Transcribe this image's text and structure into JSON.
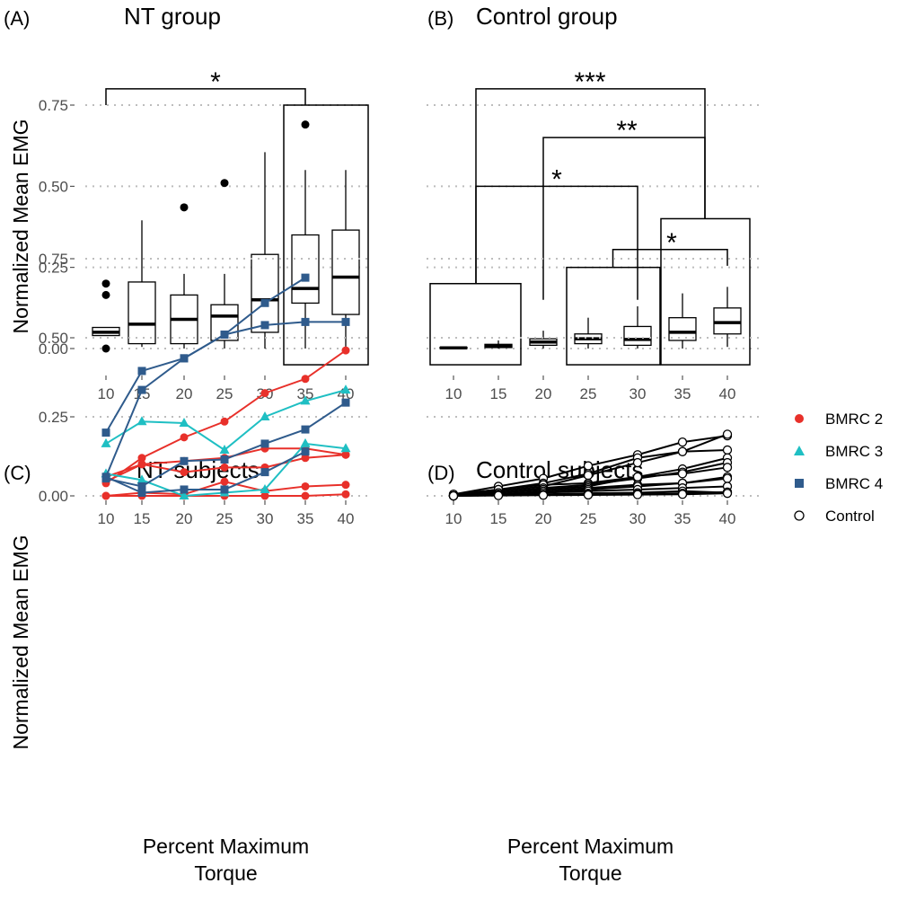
{
  "colors": {
    "BMRC 2": "#e8302a",
    "BMRC 3": "#1fbfc3",
    "BMRC 4": "#2f5b8c",
    "Control": "#000000",
    "grid": "#bdbdbd"
  },
  "legend": {
    "items": [
      {
        "label": "BMRC 2",
        "shape": "circle",
        "color": "#e8302a"
      },
      {
        "label": "BMRC 3",
        "shape": "triangle",
        "color": "#1fbfc3"
      },
      {
        "label": "BMRC 4",
        "shape": "square",
        "color": "#2f5b8c"
      },
      {
        "label": "Control",
        "shape": "open-circle",
        "color": "#000000"
      }
    ]
  },
  "chart_data": [
    {
      "panel": "A",
      "tag": "(A)",
      "title": "NT group",
      "type": "box",
      "ylabel": "Normalized Mean EMG",
      "xlabel": "",
      "ylim": [
        -0.05,
        0.8
      ],
      "yticks": [
        0.0,
        0.25,
        0.5,
        0.75
      ],
      "ytick_labels": [
        "0.00",
        "0.25",
        "0.50",
        "0.75"
      ],
      "categories": [
        "10",
        "15",
        "20",
        "25",
        "30",
        "35",
        "40"
      ],
      "grid": "horizontal dotted",
      "boxes": [
        {
          "x": "10",
          "q1": 0.04,
          "median": 0.05,
          "q3": 0.065,
          "low": 0.04,
          "high": 0.065,
          "outliers": [
            0.2,
            0.165,
            0.0
          ]
        },
        {
          "x": "15",
          "q1": 0.015,
          "median": 0.075,
          "q3": 0.205,
          "low": 0.005,
          "high": 0.395,
          "outliers": []
        },
        {
          "x": "20",
          "q1": 0.015,
          "median": 0.09,
          "q3": 0.165,
          "low": 0.0,
          "high": 0.23,
          "outliers": [
            0.435
          ]
        },
        {
          "x": "25",
          "q1": 0.025,
          "median": 0.1,
          "q3": 0.135,
          "low": 0.0,
          "high": 0.23,
          "outliers": [
            0.51
          ]
        },
        {
          "x": "30",
          "q1": 0.05,
          "median": 0.15,
          "q3": 0.29,
          "low": 0.0,
          "high": 0.605,
          "outliers": []
        },
        {
          "x": "35",
          "q1": 0.14,
          "median": 0.185,
          "q3": 0.35,
          "low": 0.0,
          "high": 0.55,
          "outliers": [
            0.69
          ]
        },
        {
          "x": "40",
          "q1": 0.105,
          "median": 0.22,
          "q3": 0.365,
          "low": 0.005,
          "high": 0.55,
          "outliers": []
        }
      ],
      "groups": [
        {
          "from": "35",
          "to": "40",
          "y0": -0.05,
          "y1": 0.75
        }
      ],
      "brackets": [
        {
          "from": "10",
          "to": "35",
          "y": 0.8,
          "left_end": 0.75,
          "right_end": 0.75,
          "label": "*"
        }
      ]
    },
    {
      "panel": "B",
      "tag": "(B)",
      "title": "Control group",
      "type": "box",
      "ylabel": "",
      "xlabel": "",
      "ylim": [
        -0.05,
        0.8
      ],
      "yticks": [
        0.0,
        0.25,
        0.5,
        0.75
      ],
      "ytick_labels": [
        "",
        "",
        "",
        ""
      ],
      "categories": [
        "10",
        "15",
        "20",
        "25",
        "30",
        "35",
        "40"
      ],
      "grid": "horizontal dotted",
      "boxes": [
        {
          "x": "10",
          "q1": 0.0,
          "median": 0.002,
          "q3": 0.004,
          "low": 0.0,
          "high": 0.005,
          "outliers": []
        },
        {
          "x": "15",
          "q1": 0.003,
          "median": 0.008,
          "q3": 0.013,
          "low": 0.0,
          "high": 0.025,
          "outliers": []
        },
        {
          "x": "20",
          "q1": 0.01,
          "median": 0.02,
          "q3": 0.03,
          "low": 0.0,
          "high": 0.055,
          "outliers": []
        },
        {
          "x": "25",
          "q1": 0.015,
          "median": 0.03,
          "q3": 0.045,
          "low": 0.0,
          "high": 0.095,
          "outliers": []
        },
        {
          "x": "30",
          "q1": 0.01,
          "median": 0.028,
          "q3": 0.068,
          "low": 0.0,
          "high": 0.13,
          "outliers": []
        },
        {
          "x": "35",
          "q1": 0.025,
          "median": 0.05,
          "q3": 0.095,
          "low": 0.0,
          "high": 0.17,
          "outliers": []
        },
        {
          "x": "40",
          "q1": 0.045,
          "median": 0.08,
          "q3": 0.125,
          "low": 0.005,
          "high": 0.19,
          "outliers": []
        }
      ],
      "groups": [
        {
          "from": "10",
          "to": "15",
          "y0": -0.05,
          "y1": 0.2
        },
        {
          "from": "25",
          "to": "30",
          "y0": -0.05,
          "y1": 0.25
        },
        {
          "from": "35",
          "to": "40",
          "y0": -0.05,
          "y1": 0.4
        }
      ],
      "brackets": [
        {
          "from": "12.5",
          "to": "37.5",
          "y": 0.8,
          "left_end": 0.2,
          "right_end": 0.4,
          "label": "***"
        },
        {
          "from": "20",
          "to": "37.5",
          "y": 0.65,
          "left_end": 0.15,
          "right_end": 0.4,
          "label": "**"
        },
        {
          "from": "12.5",
          "to": "30",
          "y": 0.5,
          "left_end": 0.2,
          "right_end": 0.15,
          "label": "*"
        },
        {
          "from": "27.5",
          "to": "40",
          "y": 0.305,
          "left_end": 0.25,
          "right_end": 0.255,
          "label": "*"
        }
      ]
    },
    {
      "panel": "C",
      "tag": "(C)",
      "title": "NT subjects",
      "type": "line",
      "ylabel": "Normalized Mean EMG",
      "xlabel": "Percent Maximum\nTorque",
      "ylim": [
        -0.03,
        0.78
      ],
      "yticks": [
        0.0,
        0.25,
        0.5,
        0.75
      ],
      "ytick_labels": [
        "0.00",
        "0.25",
        "0.50",
        "0.75"
      ],
      "x": [
        10,
        15,
        20,
        25,
        30,
        35,
        40
      ],
      "grid": "horizontal dotted",
      "series": [
        {
          "group": "BMRC 2",
          "values": [
            0.04,
            0.12,
            0.185,
            0.235,
            0.325,
            0.37,
            0.46
          ]
        },
        {
          "group": "BMRC 2",
          "values": [
            0.045,
            0.1,
            0.11,
            0.12,
            0.15,
            0.15,
            0.13
          ]
        },
        {
          "group": "BMRC 2",
          "values": [
            0.06,
            0.1,
            0.075,
            0.09,
            0.09,
            0.12,
            0.13
          ]
        },
        {
          "group": "BMRC 2",
          "values": [
            0.0,
            0.01,
            0.005,
            0.045,
            0.015,
            0.03,
            0.035
          ]
        },
        {
          "group": "BMRC 2",
          "values": [
            0.0,
            0.0,
            0.0,
            0.0,
            0.0,
            0.0,
            0.005
          ]
        },
        {
          "group": "BMRC 3",
          "values": [
            0.165,
            0.235,
            0.23,
            0.145,
            0.25,
            0.3,
            0.335
          ]
        },
        {
          "group": "BMRC 3",
          "values": [
            0.07,
            0.05,
            0.0,
            0.01,
            0.02,
            0.165,
            0.15
          ]
        },
        {
          "group": "BMRC 4",
          "values": [
            0.2,
            0.395,
            0.435,
            0.51,
            0.61,
            0.69,
            null
          ]
        },
        {
          "group": "BMRC 4",
          "values": [
            0.06,
            0.335,
            0.435,
            0.51,
            0.54,
            0.55,
            0.55
          ]
        },
        {
          "group": "BMRC 4",
          "values": [
            0.055,
            0.03,
            0.11,
            0.115,
            0.165,
            0.21,
            0.295
          ]
        },
        {
          "group": "BMRC 4",
          "values": [
            0.06,
            0.01,
            0.02,
            0.02,
            0.075,
            0.14,
            null
          ]
        }
      ]
    },
    {
      "panel": "D",
      "tag": "(D)",
      "title": "Control subjects",
      "type": "line",
      "ylabel": "",
      "xlabel": "Percent Maximum\nTorque",
      "ylim": [
        -0.03,
        0.78
      ],
      "yticks": [
        0.0,
        0.25,
        0.5,
        0.75
      ],
      "ytick_labels": [
        "",
        "",
        "",
        ""
      ],
      "x": [
        10,
        15,
        20,
        25,
        30,
        35,
        40
      ],
      "grid": "horizontal dotted",
      "series": [
        {
          "group": "Control",
          "values": [
            0.005,
            0.03,
            0.055,
            0.095,
            0.13,
            0.17,
            0.19
          ]
        },
        {
          "group": "Control",
          "values": [
            0.005,
            0.02,
            0.04,
            0.07,
            0.12,
            0.14,
            0.195
          ]
        },
        {
          "group": "Control",
          "values": [
            0.0,
            0.015,
            0.03,
            0.065,
            0.105,
            0.14,
            0.145
          ]
        },
        {
          "group": "Control",
          "values": [
            0.005,
            0.02,
            0.035,
            0.04,
            0.06,
            0.085,
            0.12
          ]
        },
        {
          "group": "Control",
          "values": [
            0.0,
            0.01,
            0.025,
            0.035,
            0.055,
            0.075,
            0.105
          ]
        },
        {
          "group": "Control",
          "values": [
            0.0,
            0.01,
            0.02,
            0.03,
            0.06,
            0.07,
            0.09
          ]
        },
        {
          "group": "Control",
          "values": [
            0.0,
            0.005,
            0.015,
            0.025,
            0.035,
            0.04,
            0.06
          ]
        },
        {
          "group": "Control",
          "values": [
            0.0,
            0.005,
            0.01,
            0.02,
            0.03,
            0.04,
            0.055
          ]
        },
        {
          "group": "Control",
          "values": [
            0.0,
            0.005,
            0.01,
            0.015,
            0.02,
            0.025,
            0.03
          ]
        },
        {
          "group": "Control",
          "values": [
            0.0,
            0.003,
            0.005,
            0.008,
            0.01,
            0.015,
            0.01
          ]
        },
        {
          "group": "Control",
          "values": [
            0.0,
            0.002,
            0.004,
            0.005,
            0.006,
            0.008,
            0.012
          ]
        },
        {
          "group": "Control",
          "values": [
            0.0,
            0.001,
            0.002,
            0.003,
            0.004,
            0.005,
            0.008
          ]
        }
      ]
    }
  ]
}
